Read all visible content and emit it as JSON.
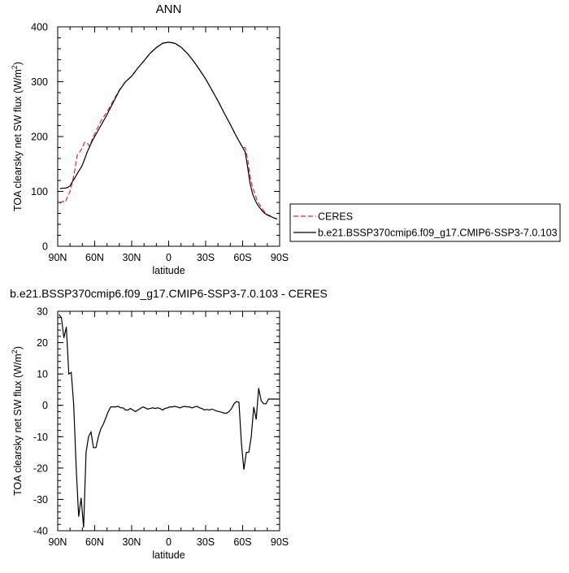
{
  "chart_data": [
    {
      "type": "line",
      "title": "ANN",
      "xlabel": "latitude",
      "ylabel": "TOA clearsky net SW flux (W/m",
      "ylabel_sup": "2",
      "ylabel_end": ")",
      "xlim": [
        90,
        -90
      ],
      "ylim": [
        0,
        400
      ],
      "x_ticks": [
        90,
        60,
        30,
        0,
        -30,
        -60,
        -90
      ],
      "x_tick_labels": [
        "90N",
        "60N",
        "30N",
        "0",
        "30S",
        "60S",
        "90S"
      ],
      "y_ticks": [
        0,
        100,
        200,
        300,
        400
      ],
      "y_tick_labels": [
        "0",
        "100",
        "200",
        "300",
        "400"
      ],
      "legend_position": "right",
      "series": [
        {
          "name": "CERES",
          "color": "#e8262c",
          "dash": "dashed",
          "x": [
            88,
            86,
            84,
            82,
            80,
            78,
            76,
            74,
            72,
            70,
            68,
            66,
            64,
            62,
            60,
            55,
            50,
            45,
            40,
            35,
            30,
            25,
            20,
            15,
            10,
            5,
            0,
            -5,
            -10,
            -15,
            -20,
            -25,
            -30,
            -35,
            -40,
            -45,
            -50,
            -55,
            -60,
            -62,
            -64,
            -66,
            -68,
            -70,
            -72,
            -74,
            -76,
            -78,
            -80,
            -82,
            -84,
            -86,
            -88
          ],
          "y": [
            78,
            82,
            80,
            90,
            100,
            118,
            140,
            168,
            172,
            180,
            190,
            188,
            182,
            195,
            205,
            228,
            245,
            265,
            285,
            300,
            310,
            325,
            338,
            352,
            362,
            370,
            372,
            370,
            363,
            352,
            338,
            322,
            305,
            285,
            265,
            243,
            222,
            200,
            180,
            180,
            160,
            128,
            108,
            95,
            82,
            75,
            68,
            62,
            58,
            56,
            53,
            51,
            50
          ]
        },
        {
          "name": "b.e21.BSSP370cmip6.f09_g17.CMIP6-SSP3-7.0.103",
          "color": "#000000",
          "dash": "solid",
          "x": [
            88,
            86,
            84,
            82,
            80,
            78,
            76,
            74,
            72,
            70,
            68,
            66,
            64,
            62,
            60,
            55,
            50,
            45,
            40,
            35,
            30,
            25,
            20,
            15,
            10,
            5,
            0,
            -5,
            -10,
            -15,
            -20,
            -25,
            -30,
            -35,
            -40,
            -45,
            -50,
            -55,
            -60,
            -62,
            -64,
            -66,
            -68,
            -70,
            -72,
            -74,
            -76,
            -78,
            -80,
            -82,
            -84,
            -86,
            -88
          ],
          "y": [
            105,
            106,
            106,
            107,
            110,
            118,
            125,
            133,
            140,
            148,
            160,
            172,
            182,
            192,
            200,
            220,
            240,
            262,
            284,
            300,
            310,
            325,
            338,
            352,
            362,
            370,
            372,
            370,
            363,
            352,
            338,
            322,
            305,
            285,
            265,
            243,
            222,
            200,
            180,
            172,
            145,
            115,
            96,
            85,
            76,
            70,
            64,
            60,
            57,
            55,
            53,
            51,
            50
          ]
        }
      ]
    },
    {
      "type": "line",
      "title": "b.e21.BSSP370cmip6.f09_g17.CMIP6-SSP3-7.0.103 - CERES",
      "xlabel": "latitude",
      "ylabel": "TOA clearsky net SW flux (W/m",
      "ylabel_sup": "2",
      "ylabel_end": ")",
      "xlim": [
        90,
        -90
      ],
      "ylim": [
        -40,
        30
      ],
      "x_ticks": [
        90,
        60,
        30,
        0,
        -30,
        -60,
        -90
      ],
      "x_tick_labels": [
        "90N",
        "60N",
        "30N",
        "0",
        "30S",
        "60S",
        "90S"
      ],
      "y_ticks": [
        -40,
        -30,
        -20,
        -10,
        0,
        10,
        20,
        30
      ],
      "y_tick_labels": [
        "-40",
        "-30",
        "-20",
        "-10",
        "0",
        "10",
        "20",
        "30"
      ],
      "series": [
        {
          "color": "#000000",
          "dash": "solid",
          "x": [
            89,
            87,
            85,
            83,
            81,
            79,
            77,
            75,
            73,
            71,
            69,
            67,
            65,
            63,
            61,
            59,
            57,
            55,
            53,
            51,
            49,
            47,
            45,
            43,
            41,
            39,
            37,
            35,
            33,
            31,
            29,
            27,
            25,
            23,
            21,
            19,
            17,
            15,
            13,
            11,
            9,
            7,
            5,
            3,
            1,
            -1,
            -3,
            -5,
            -7,
            -9,
            -11,
            -13,
            -15,
            -17,
            -19,
            -21,
            -23,
            -25,
            -27,
            -29,
            -31,
            -33,
            -35,
            -37,
            -39,
            -41,
            -43,
            -45,
            -47,
            -49,
            -51,
            -53,
            -55,
            -57,
            -59,
            -61,
            -63,
            -65,
            -67,
            -69,
            -71,
            -73,
            -75,
            -77,
            -79,
            -81,
            -83,
            -85,
            -87,
            -89
          ],
          "y": [
            29,
            28,
            21.5,
            25,
            10,
            10.5,
            0,
            -20,
            -35.5,
            -29.5,
            -39,
            -15,
            -10,
            -8.5,
            -13.5,
            -13.5,
            -10,
            -7.5,
            -6,
            -4,
            -2,
            -0.5,
            -0.5,
            -0.5,
            -0.3,
            -0.8,
            -0.8,
            -1.5,
            -1.5,
            -1.0,
            -1.5,
            -2.0,
            -1.5,
            -1.0,
            -0.5,
            -0.8,
            -1.2,
            -1.0,
            -0.8,
            -1.0,
            -0.8,
            -1.0,
            -1.5,
            -1.0,
            -0.8,
            -0.5,
            -0.5,
            -0.3,
            -0.5,
            -0.8,
            -0.5,
            -0.3,
            -0.5,
            -0.5,
            -0.8,
            -0.5,
            -0.3,
            -0.8,
            -1.0,
            -1.5,
            -1.3,
            -1.5,
            -1.2,
            -1.5,
            -1.8,
            -2.0,
            -2.2,
            -2.5,
            -2.5,
            -2.0,
            -1.0,
            0.5,
            1.2,
            1.0,
            -12,
            -20.5,
            -15,
            -15,
            -10,
            -0.5,
            -4.5,
            5.5,
            1.5,
            0.5,
            0.5,
            2,
            2,
            2,
            2,
            2
          ]
        }
      ]
    }
  ]
}
